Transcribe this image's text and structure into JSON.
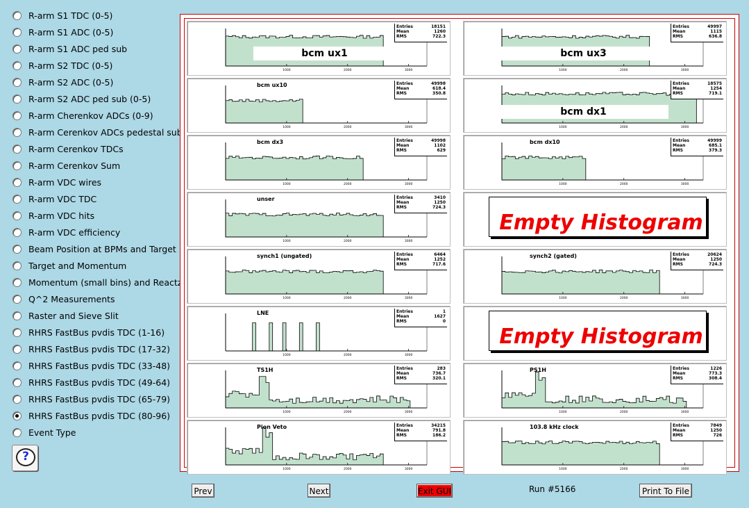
{
  "menu": {
    "items": [
      "R-arm S1 TDC (0-5)",
      "R-arm S1 ADC (0-5)",
      "R-arm S1 ADC ped sub",
      "R-arm S2 TDC (0-5)",
      "R-arm S2 ADC (0-5)",
      "R-arm S2 ADC ped sub (0-5)",
      "R-arm Cherenkov ADCs (0-9)",
      "R-arm Cerenkov ADCs pedestal sub",
      "R-arm Cerenkov TDCs",
      "R-arm Cerenkov Sum",
      "R-arm VDC wires",
      "R-arm VDC TDC",
      "R-arm VDC hits",
      "R-arm VDC efficiency",
      "Beam Position at BPMs and Target",
      "Target and Momentum",
      "Momentum (small bins) and Reactz",
      "Q^2 Measurements",
      "Raster and Sieve Slit",
      "RHRS FastBus pvdis TDC (1-16)",
      "RHRS FastBus pvdis TDC (17-32)",
      "RHRS FastBus pvdis TDC (33-48)",
      "RHRS FastBus pvdis TDC (49-64)",
      "RHRS FastBus pvdis TDC (65-79)",
      "RHRS FastBus pvdis TDC (80-96)",
      "Event Type"
    ],
    "selected_index": 24,
    "help_icon": "question-mark-bubble",
    "help_glyph": "?"
  },
  "stat_labels": [
    "Entries",
    "Mean",
    "RMS"
  ],
  "axis_ticks": [
    "1000",
    "2000",
    "3000"
  ],
  "empty_label": "Empty Histogram",
  "histograms": [
    {
      "title": "bcm ux1",
      "big": true,
      "entries": "18151",
      "mean": "1260",
      "rms": "722.3"
    },
    {
      "title": "bcm ux3",
      "big": true,
      "entries": "49997",
      "mean": "1115",
      "rms": "636.8"
    },
    {
      "title": "bcm ux10",
      "big": false,
      "entries": "49998",
      "mean": "618.4",
      "rms": "350.8"
    },
    {
      "title": "bcm dx1",
      "big": true,
      "entries": "18575",
      "mean": "1254",
      "rms": "719.1"
    },
    {
      "title": "bcm dx3",
      "big": false,
      "entries": "49998",
      "mean": "1102",
      "rms": "629"
    },
    {
      "title": "bcm dx10",
      "big": false,
      "entries": "49999",
      "mean": "685.1",
      "rms": "379.3"
    },
    {
      "title": "unser",
      "big": false,
      "entries": "3410",
      "mean": "1250",
      "rms": "724.3"
    },
    {
      "title": "",
      "empty": true
    },
    {
      "title": "synch1 (ungated)",
      "big": false,
      "entries": "6464",
      "mean": "1252",
      "rms": "717.6"
    },
    {
      "title": "synch2 (gated)",
      "big": false,
      "entries": "20624",
      "mean": "1250",
      "rms": "724.3"
    },
    {
      "title": "LNE",
      "big": false,
      "entries": "1",
      "mean": "1627",
      "rms": "0"
    },
    {
      "title": "",
      "empty": true
    },
    {
      "title": "TS1H",
      "big": false,
      "entries": "283",
      "mean": "736.7",
      "rms": "320.1"
    },
    {
      "title": "PS1H",
      "big": false,
      "entries": "1226",
      "mean": "773.3",
      "rms": "308.4"
    },
    {
      "title": "Pion Veto",
      "big": false,
      "entries": "34215",
      "mean": "791.8",
      "rms": "186.2"
    },
    {
      "title": "103.8 kHz clock",
      "big": false,
      "entries": "7849",
      "mean": "1250",
      "rms": "726"
    }
  ],
  "buttons": {
    "prev": "Prev",
    "next": "Next",
    "exit": "Exit GUI",
    "print": "Print To File"
  },
  "run_label": "Run #5166",
  "colors": {
    "background": "#add8e6",
    "frame": "#cc0000",
    "exit_button": "#ee0000",
    "empty_text": "#ee0000",
    "fill": "#b7dcc4"
  }
}
